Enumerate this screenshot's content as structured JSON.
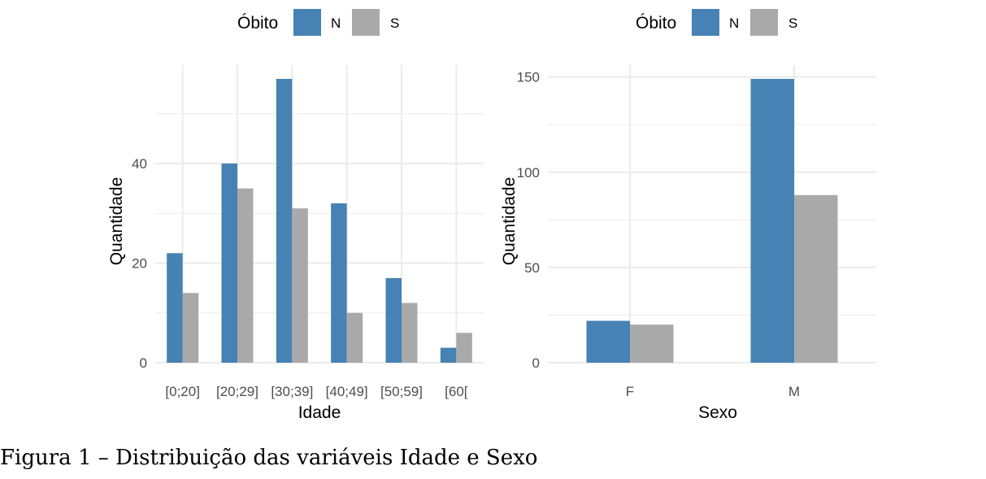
{
  "caption": "Figura 1 – Distribuição das variáveis Idade e Sexo",
  "colors": {
    "N": "#4682B4",
    "S": "#A9A9A9",
    "grid": "#EBEBEB",
    "tick": "#4D4D4D",
    "text": "#000000"
  },
  "chart_data": [
    {
      "type": "bar",
      "xlabel": "Idade",
      "ylabel": "Quantidade",
      "legend_title": "Óbito",
      "legend_position": "top",
      "grid": true,
      "categories": [
        "[0;20]",
        "[20;29]",
        "[30;39]",
        "[40;49]",
        "[50;59]",
        "[60["
      ],
      "series": [
        {
          "name": "N",
          "values": [
            22,
            40,
            57,
            32,
            17,
            3
          ]
        },
        {
          "name": "S",
          "values": [
            14,
            35,
            31,
            10,
            12,
            6
          ]
        }
      ],
      "ylim": [
        0,
        60
      ],
      "yticks": [
        0,
        20,
        40
      ]
    },
    {
      "type": "bar",
      "xlabel": "Sexo",
      "ylabel": "Quantidade",
      "legend_title": "Óbito",
      "legend_position": "top",
      "grid": true,
      "categories": [
        "F",
        "M"
      ],
      "series": [
        {
          "name": "N",
          "values": [
            22,
            149
          ]
        },
        {
          "name": "S",
          "values": [
            20,
            88
          ]
        }
      ],
      "ylim": [
        0,
        150
      ],
      "yticks": [
        0,
        50,
        100,
        150
      ]
    }
  ]
}
